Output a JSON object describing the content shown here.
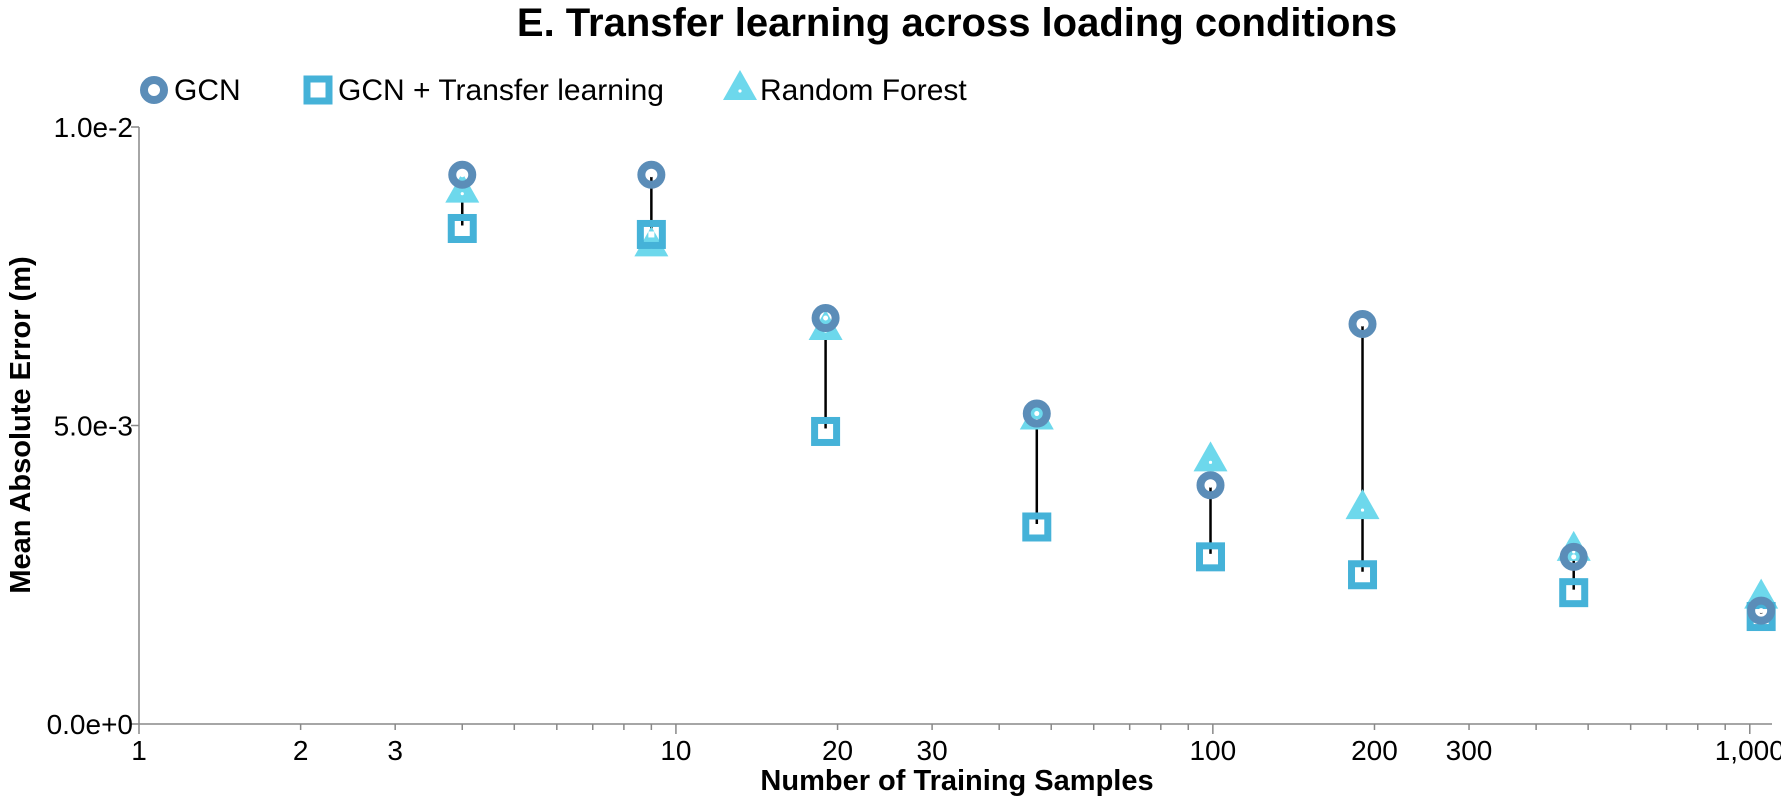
{
  "chart_data": {
    "type": "scatter",
    "title": "E. Transfer learning across loading conditions",
    "xlabel": "Number of Training Samples",
    "ylabel": "Mean Absolute Error (m)",
    "x_scale": "log",
    "xlim": [
      1,
      1100
    ],
    "ylim": [
      0,
      0.01
    ],
    "x_ticks": [
      1,
      2,
      3,
      10,
      20,
      30,
      100,
      200,
      300,
      1000
    ],
    "x_tick_labels": [
      "1",
      "2",
      "3",
      "10",
      "20",
      "30",
      "100",
      "200",
      "300",
      "1,000"
    ],
    "y_ticks": [
      0,
      0.005,
      0.01
    ],
    "y_tick_labels": [
      "0.0e+0",
      "5.0e-3",
      "1.0e-2"
    ],
    "grid": false,
    "legend_position": "top-left",
    "x": [
      4,
      9,
      19,
      47,
      99,
      190,
      470,
      1050
    ],
    "series": [
      {
        "name": "GCN",
        "marker": "circle",
        "color": "#5b8db8",
        "values": [
          0.0092,
          0.0092,
          0.0068,
          0.0052,
          0.004,
          0.0067,
          0.0028,
          0.0019
        ]
      },
      {
        "name": "GCN + Transfer learning",
        "marker": "square",
        "color": "#45b2d8",
        "values": [
          0.0083,
          0.0082,
          0.0049,
          0.0033,
          0.0028,
          0.0025,
          0.0022,
          0.0018
        ]
      },
      {
        "name": "Random Forest",
        "marker": "triangle",
        "color": "#6dd8ec",
        "values": [
          0.0089,
          0.008,
          0.0066,
          0.0051,
          0.0044,
          0.0036,
          0.0029,
          0.0021
        ]
      }
    ],
    "connector_color": "#000000"
  }
}
